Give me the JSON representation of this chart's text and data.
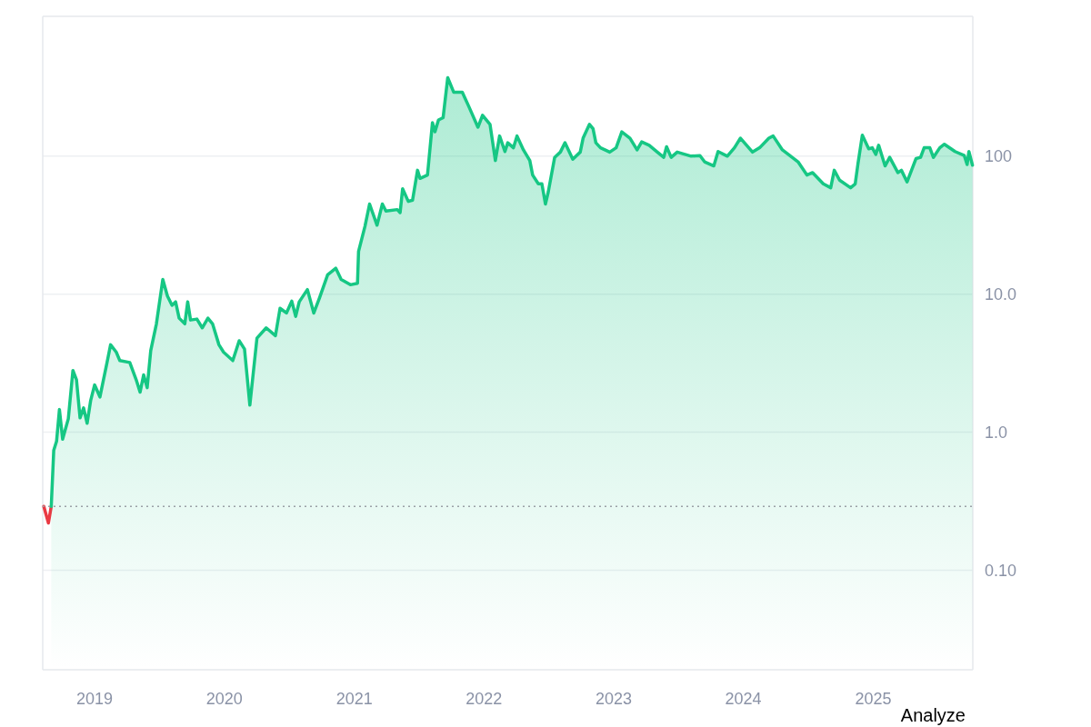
{
  "chart_data": {
    "type": "area",
    "log": true,
    "grid": "y",
    "xlim": [
      "2018-08-08",
      "2025-10-08"
    ],
    "xticks": [
      {
        "value": "2019-01-01",
        "label": "2019"
      },
      {
        "value": "2020-01-01",
        "label": "2020"
      },
      {
        "value": "2021-01-01",
        "label": "2021"
      },
      {
        "value": "2022-01-01",
        "label": "2022"
      },
      {
        "value": "2023-01-01",
        "label": "2023"
      },
      {
        "value": "2024-01-01",
        "label": "2024"
      },
      {
        "value": "2025-01-01",
        "label": "2025"
      }
    ],
    "ylim": [
      0.019,
      1030
    ],
    "yticks": [
      {
        "value": 0.1,
        "label": "0.10"
      },
      {
        "value": 1,
        "label": "1.0"
      },
      {
        "value": 10,
        "label": "10.0"
      },
      100
    ],
    "ref_lines": [
      {
        "axis": "y",
        "value": 0.29,
        "color": "#9aa0a6",
        "line_style": "dotted"
      }
    ],
    "annotations": [
      "Analyze"
    ],
    "series": [
      {
        "type": "line",
        "color": "#ea3943",
        "x": [
          "2018-08-11",
          "2018-08-24",
          "2018-09-01"
        ],
        "values": [
          0.29,
          0.22,
          0.29
        ]
      },
      {
        "color": "#16c784",
        "x": [
          "2018-09-01",
          "2018-09-08",
          "2018-09-16",
          "2018-09-24",
          "2018-10-03",
          "2018-10-19",
          "2018-11-01",
          "2018-11-11",
          "2018-11-21",
          "2018-12-01",
          "2018-12-11",
          "2018-12-21",
          "2019-01-01",
          "2019-01-16",
          "2019-02-05",
          "2019-02-15",
          "2019-03-03",
          "2019-03-13",
          "2019-04-10",
          "2019-04-28",
          "2019-05-09",
          "2019-05-19",
          "2019-05-29",
          "2019-06-08",
          "2019-06-24",
          "2019-07-12",
          "2019-07-25",
          "2019-08-07",
          "2019-08-17",
          "2019-08-27",
          "2019-09-12",
          "2019-09-20",
          "2019-09-28",
          "2019-10-16",
          "2019-10-31",
          "2019-11-16",
          "2019-11-29",
          "2019-12-17",
          "2019-12-30",
          "2020-01-25",
          "2020-02-12",
          "2020-02-27",
          "2020-03-13",
          "2020-04-02",
          "2020-04-28",
          "2020-05-24",
          "2020-06-06",
          "2020-06-24",
          "2020-07-09",
          "2020-07-20",
          "2020-07-30",
          "2020-08-22",
          "2020-09-09",
          "2020-09-25",
          "2020-10-18",
          "2020-11-10",
          "2020-11-25",
          "2020-12-21",
          "2021-01-10",
          "2021-01-13",
          "2021-01-31",
          "2021-02-13",
          "2021-03-06",
          "2021-03-21",
          "2021-03-31",
          "2021-05-02",
          "2021-05-10",
          "2021-05-17",
          "2021-06-02",
          "2021-06-14",
          "2021-06-28",
          "2021-07-05",
          "2021-07-26",
          "2021-08-09",
          "2021-08-16",
          "2021-08-26",
          "2021-09-08",
          "2021-09-21",
          "2021-10-08",
          "2021-11-01",
          "2021-11-19",
          "2021-12-15",
          "2021-12-28",
          "2022-01-18",
          "2022-02-02",
          "2022-02-14",
          "2022-03-01",
          "2022-03-09",
          "2022-03-25",
          "2022-04-04",
          "2022-04-22",
          "2022-05-10",
          "2022-05-18",
          "2022-06-03",
          "2022-06-13",
          "2022-06-23",
          "2022-07-01",
          "2022-07-19",
          "2022-08-04",
          "2022-08-17",
          "2022-09-08",
          "2022-09-29",
          "2022-10-07",
          "2022-10-25",
          "2022-11-04",
          "2022-11-12",
          "2022-11-25",
          "2022-12-21",
          "2023-01-08",
          "2023-01-24",
          "2023-02-16",
          "2023-03-08",
          "2023-03-21",
          "2023-04-11",
          "2023-05-04",
          "2023-05-22",
          "2023-05-30",
          "2023-06-12",
          "2023-06-29",
          "2023-08-07",
          "2023-09-01",
          "2023-09-14",
          "2023-10-10",
          "2023-10-22",
          "2023-11-17",
          "2023-12-07",
          "2023-12-24",
          "2024-01-27",
          "2024-02-16",
          "2024-03-13",
          "2024-03-25",
          "2024-04-20",
          "2024-06-03",
          "2024-06-28",
          "2024-07-14",
          "2024-08-13",
          "2024-09-03",
          "2024-09-13",
          "2024-09-28",
          "2024-10-29",
          "2024-11-11",
          "2024-11-19",
          "2024-12-01",
          "2024-12-19",
          "2024-12-29",
          "2025-01-08",
          "2025-01-16",
          "2025-02-03",
          "2025-02-16",
          "2025-03-11",
          "2025-03-21",
          "2025-04-06",
          "2025-05-01",
          "2025-05-14",
          "2025-05-24",
          "2025-06-09",
          "2025-06-19",
          "2025-07-07",
          "2025-07-20",
          "2025-08-19",
          "2025-09-14",
          "2025-09-22",
          "2025-09-27",
          "2025-10-07"
        ],
        "values": [
          0.29,
          0.74,
          0.86,
          1.46,
          0.89,
          1.25,
          2.8,
          2.4,
          1.27,
          1.5,
          1.16,
          1.7,
          2.2,
          1.8,
          3.2,
          4.3,
          3.8,
          3.3,
          3.2,
          2.4,
          1.95,
          2.6,
          2.1,
          3.9,
          6.1,
          12.8,
          9.7,
          8.3,
          8.8,
          6.7,
          6.1,
          8.8,
          6.5,
          6.6,
          5.7,
          6.7,
          6.1,
          4.3,
          3.8,
          3.3,
          4.6,
          4.0,
          1.57,
          4.8,
          5.7,
          5.0,
          7.9,
          7.3,
          8.9,
          6.9,
          8.8,
          10.8,
          7.3,
          9.4,
          13.8,
          15.4,
          12.8,
          11.7,
          12,
          20.4,
          31,
          45,
          31.6,
          45,
          40,
          41,
          39,
          58,
          47,
          48,
          79,
          69,
          73,
          175,
          150,
          183,
          190,
          370,
          290,
          290,
          230,
          162,
          198,
          170,
          93,
          140,
          108,
          125,
          115,
          140,
          111,
          93,
          73,
          63,
          63,
          45,
          55,
          98,
          107,
          125,
          95,
          107,
          135,
          170,
          158,
          125,
          115,
          107,
          115,
          150,
          135,
          111,
          127,
          120,
          107,
          98,
          117,
          98,
          107,
          100,
          101,
          91,
          85,
          108,
          100,
          115,
          135,
          107,
          115,
          135,
          140,
          111,
          91,
          73,
          76,
          63,
          59,
          79,
          67,
          59,
          63,
          89,
          142,
          113,
          115,
          103,
          120,
          85,
          98,
          76,
          79,
          65,
          96,
          98,
          115,
          115,
          98,
          115,
          122,
          108,
          101,
          87,
          108,
          86
        ]
      }
    ]
  }
}
